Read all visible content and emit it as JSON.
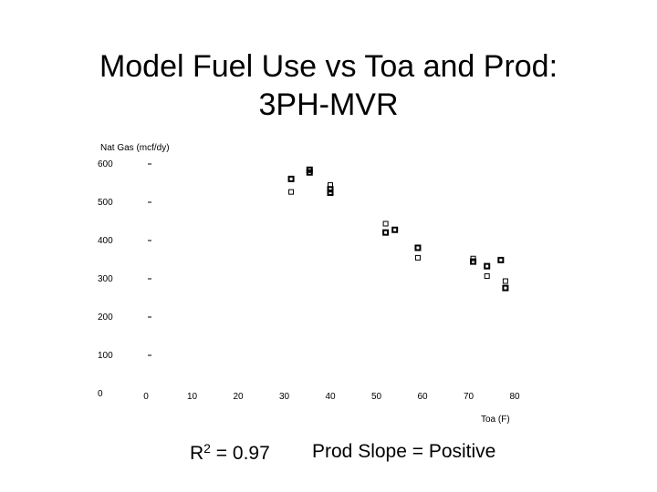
{
  "slide": {
    "title_line1": "Model Fuel Use vs Toa and Prod:",
    "title_line2": "3PH-MVR"
  },
  "footer": {
    "r2_prefix": "R",
    "r2_exponent": "2",
    "r2_value": " = 0.97",
    "slope": "Prod Slope = Positive"
  },
  "chart_data": {
    "type": "scatter",
    "title": "",
    "xlabel": "Toa (F)",
    "ylabel": "Nat Gas (mcf/dy)",
    "xlim": [
      0,
      80
    ],
    "ylim": [
      0,
      600
    ],
    "x_ticks": [
      0,
      10,
      20,
      30,
      40,
      50,
      60,
      70,
      80
    ],
    "y_ticks": [
      0,
      100,
      200,
      300,
      400,
      500,
      600
    ],
    "y_tick_labels": [
      "0",
      "100",
      "200",
      "300",
      "400",
      "500",
      "600"
    ],
    "grid": false,
    "series": [
      {
        "marker": "bold-square",
        "color": "#000000",
        "points": [
          [
            31.5,
            561
          ],
          [
            35.5,
            585
          ],
          [
            35.5,
            578
          ],
          [
            40,
            534
          ],
          [
            40,
            525
          ],
          [
            52,
            421
          ],
          [
            54,
            428
          ],
          [
            59,
            381
          ],
          [
            71,
            345
          ],
          [
            74,
            333
          ],
          [
            77,
            349
          ],
          [
            78,
            276
          ]
        ]
      },
      {
        "marker": "light-square",
        "color": "#000000",
        "points": [
          [
            31.5,
            527
          ],
          [
            40,
            545
          ],
          [
            52,
            444
          ],
          [
            59,
            355
          ],
          [
            71,
            353
          ],
          [
            74,
            307
          ],
          [
            78,
            294
          ]
        ]
      }
    ]
  }
}
